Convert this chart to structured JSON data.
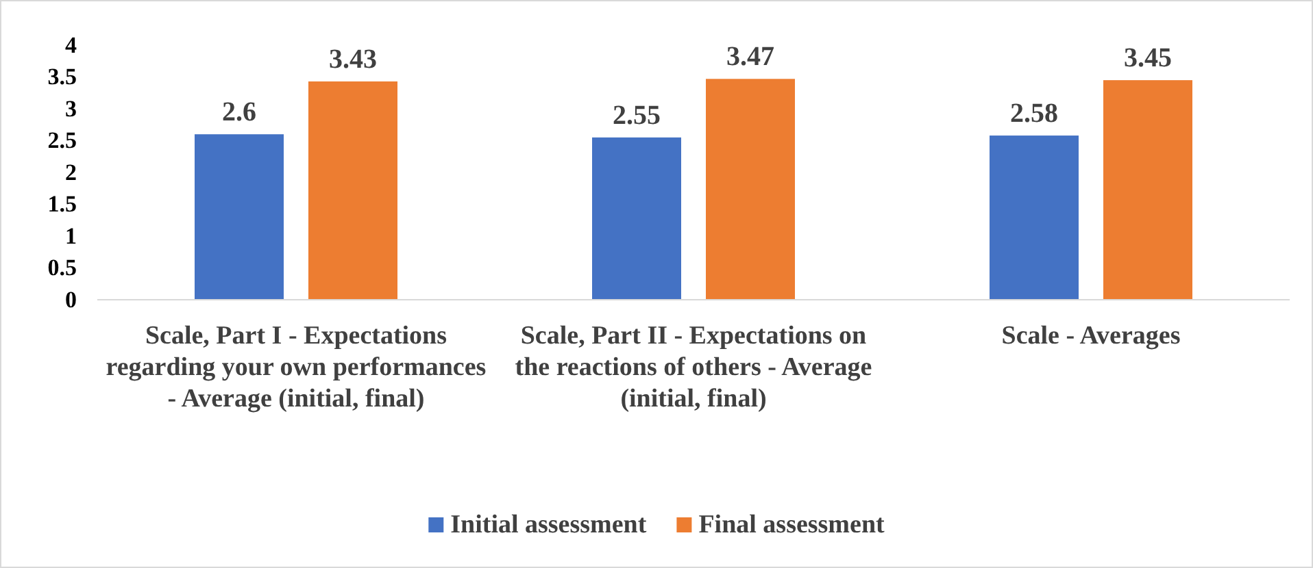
{
  "chart_data": {
    "type": "bar",
    "categories": [
      "Scale, Part I - Expectations regarding your own performances - Average (initial, final)",
      "Scale, Part II - Expectations on the reactions of others - Average (initial, final)",
      "Scale - Averages"
    ],
    "series": [
      {
        "name": "Initial assessment",
        "color": "#4472c4",
        "values": [
          2.6,
          2.55,
          2.58
        ]
      },
      {
        "name": "Final assessment",
        "color": "#ed7d31",
        "values": [
          3.43,
          3.47,
          3.45
        ]
      }
    ],
    "ylim": [
      0,
      4
    ],
    "yticks": [
      0,
      0.5,
      1,
      1.5,
      2,
      2.5,
      3,
      3.5,
      4
    ],
    "grid": false,
    "legend": "bottom",
    "data_labels": true
  }
}
